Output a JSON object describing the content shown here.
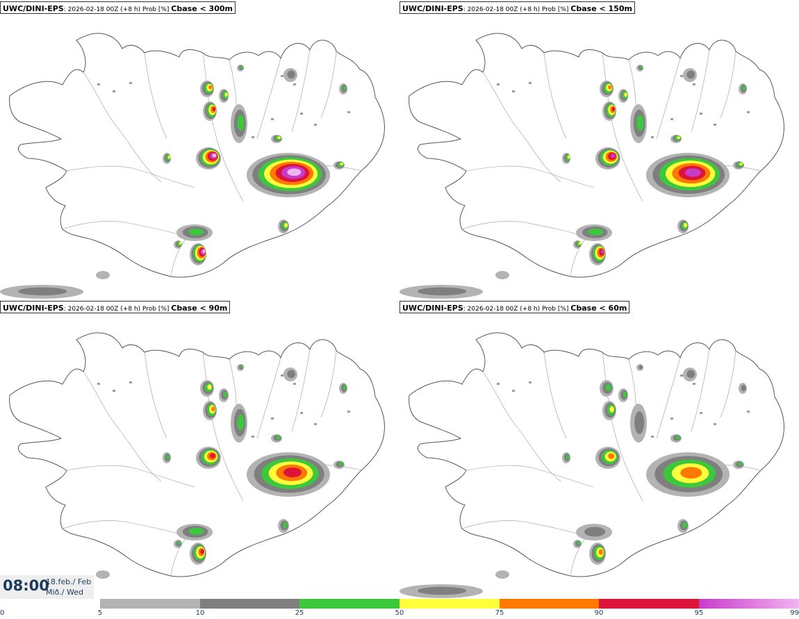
{
  "panels": [
    {
      "source": "UWC/DINI-EPS",
      "meta": ": 2026-02-18 00Z (+8 h) Prob [%] ",
      "condition": "Cbase < 300m",
      "intensity": 1.0
    },
    {
      "source": "UWC/DINI-EPS",
      "meta": ": 2026-02-18 00Z (+8 h) Prob [%] ",
      "condition": "Cbase < 150m",
      "intensity": 0.9
    },
    {
      "source": "UWC/DINI-EPS",
      "meta": ": 2026-02-18 00Z (+8 h) Prob [%] ",
      "condition": "Cbase < 90m",
      "intensity": 0.75
    },
    {
      "source": "UWC/DINI-EPS",
      "meta": ": 2026-02-18 00Z (+8 h) Prob [%] ",
      "condition": "Cbase < 60m",
      "intensity": 0.6
    }
  ],
  "valid_time": {
    "time": "08:00",
    "date_line1": "18.feb./ Feb",
    "date_line2": "Mið./ Wed"
  },
  "legend": {
    "ticks": [
      "0",
      "5",
      "10",
      "25",
      "50",
      "75",
      "90",
      "95",
      "99"
    ],
    "bins": [
      {
        "from": 5,
        "to": 10,
        "color": "#b3b3b3"
      },
      {
        "from": 10,
        "to": 25,
        "color": "#7f7f7f"
      },
      {
        "from": 25,
        "to": 50,
        "color": "#3cc83c"
      },
      {
        "from": 50,
        "to": 75,
        "color": "#ffff3c"
      },
      {
        "from": 75,
        "to": 90,
        "color": "#ff7800"
      },
      {
        "from": 90,
        "to": 95,
        "color": "#dc143c"
      },
      {
        "from": 95,
        "to": 99,
        "color": "#c83cc8"
      },
      {
        "from": 99,
        "to": 100,
        "color": "#f0b4f0"
      }
    ]
  }
}
